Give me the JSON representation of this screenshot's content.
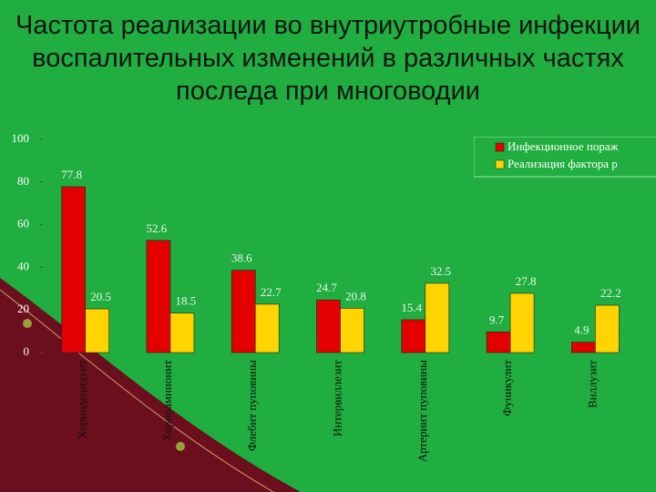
{
  "chart_data": {
    "type": "bar",
    "title": "Частота реализации во внутриутробные инфекции воспалительных изменений в различных частях последа при многоводии",
    "categories": [
      "Хориодецидуит",
      "Хориоамнионит",
      "Флебит пуповины",
      "Интервиллезит",
      "Артериит пуповины",
      "Фуникулит",
      "Виллузит"
    ],
    "series": [
      {
        "name": "Инфекционное пораж",
        "color": "#e30000",
        "values": [
          77.8,
          52.6,
          38.6,
          24.7,
          15.4,
          9.7,
          4.9
        ]
      },
      {
        "name": "Реализация фактора р",
        "color": "#ffd400",
        "values": [
          20.5,
          18.5,
          22.7,
          20.8,
          32.5,
          27.8,
          22.2
        ]
      }
    ],
    "ylim": [
      0,
      100
    ],
    "yticks": [
      0,
      20,
      40,
      60,
      80,
      100
    ],
    "legend": "top-right"
  }
}
